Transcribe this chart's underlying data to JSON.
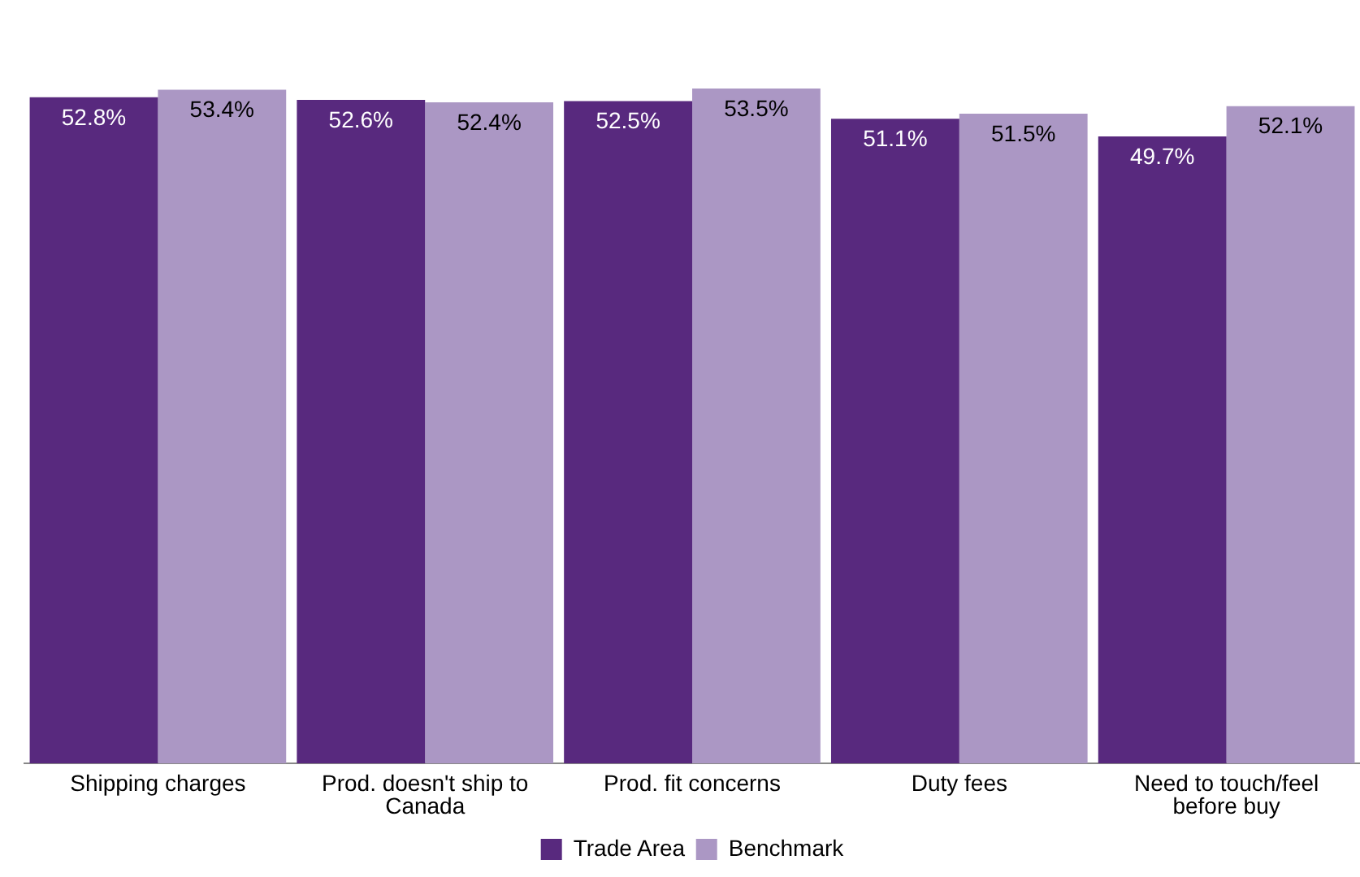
{
  "chart_data": {
    "type": "bar",
    "categories": [
      "Shipping charges",
      "Prod. doesn't ship to Canada",
      "Prod. fit concerns",
      "Duty fees",
      "Need to touch/feel before buy"
    ],
    "series": [
      {
        "name": "Trade Area",
        "color": "#58297e",
        "values": [
          52.8,
          52.6,
          52.5,
          51.1,
          49.7
        ],
        "value_labels": [
          "52.8%",
          "52.6%",
          "52.5%",
          "51.1%",
          "49.7%"
        ]
      },
      {
        "name": "Benchmark",
        "color": "#ab97c4",
        "values": [
          53.4,
          52.4,
          53.5,
          51.5,
          52.1
        ],
        "value_labels": [
          "53.4%",
          "52.4%",
          "53.5%",
          "51.5%",
          "52.1%"
        ]
      }
    ],
    "legend": "bottom",
    "grid": false
  }
}
